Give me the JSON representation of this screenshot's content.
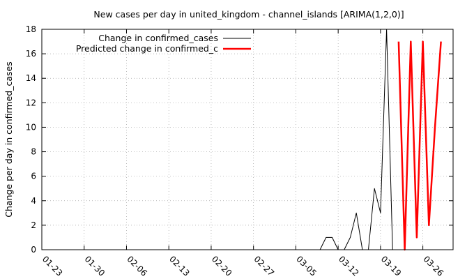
{
  "chart_data": {
    "type": "line",
    "title": "New cases per day in united_kingdom - channel_islands [ARIMA(1,2,0)]",
    "xlabel": "",
    "ylabel": "Change per day in confirmed_cases",
    "ylim": [
      0,
      18
    ],
    "yticks": [
      0,
      2,
      4,
      6,
      8,
      10,
      12,
      14,
      16,
      18
    ],
    "xlim": [
      "2020-01-23",
      "2020-03-31"
    ],
    "xticks": [
      "2020-01-23",
      "2020-01-30",
      "2020-02-06",
      "2020-02-13",
      "2020-02-20",
      "2020-02-27",
      "2020-03-05",
      "2020-03-12",
      "2020-03-19",
      "2020-03-26"
    ],
    "xtick_labels": [
      "01-23",
      "01-30",
      "02-06",
      "02-13",
      "02-20",
      "02-27",
      "03-05",
      "03-12",
      "03-19",
      "03-26"
    ],
    "grid": true,
    "legend_position": "top-left",
    "series": [
      {
        "name": "Change in confirmed_cases",
        "color": "#000000",
        "x": [
          "2020-01-23",
          "2020-03-09",
          "2020-03-10",
          "2020-03-11",
          "2020-03-12",
          "2020-03-13",
          "2020-03-14",
          "2020-03-15",
          "2020-03-16",
          "2020-03-17",
          "2020-03-18",
          "2020-03-19",
          "2020-03-20",
          "2020-03-21"
        ],
        "y": [
          0,
          0,
          1,
          1,
          0,
          0,
          1,
          3,
          0,
          0,
          5,
          3,
          18,
          0
        ]
      },
      {
        "name": "Predicted change in confirmed_c",
        "color": "#ff0000",
        "x": [
          "2020-03-22",
          "2020-03-23",
          "2020-03-24",
          "2020-03-25",
          "2020-03-26",
          "2020-03-27",
          "2020-03-28",
          "2020-03-29"
        ],
        "y": [
          17,
          0,
          17,
          1,
          17,
          2,
          10,
          17
        ]
      }
    ]
  }
}
